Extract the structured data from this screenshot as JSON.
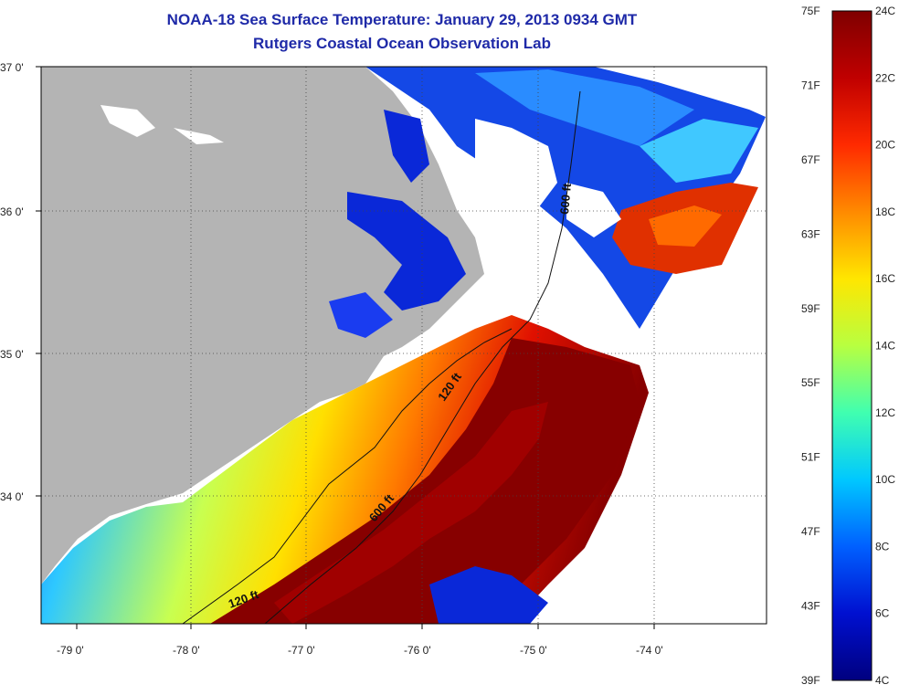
{
  "header": {
    "title": "NOAA-18 Sea Surface Temperature:  January 29, 2013 0934 GMT",
    "subtitle": "Rutgers Coastal Ocean Observation Lab"
  },
  "axes": {
    "lat_labels": [
      "37 0'",
      "36 0'",
      "35 0'",
      "34 0'"
    ],
    "lon_labels": [
      "-79 0'",
      "-78 0'",
      "-77 0'",
      "-76 0'",
      "-75 0'",
      "-74 0'"
    ]
  },
  "contours": {
    "shelf_label_1": "120 ft",
    "shelf_label_2": "120 ft",
    "slope_label_1": "600 ft",
    "slope_label_2": "600 ft"
  },
  "colorbar": {
    "f_labels": [
      "75F",
      "71F",
      "67F",
      "63F",
      "59F",
      "55F",
      "51F",
      "47F",
      "43F",
      "39F"
    ],
    "c_labels": [
      "24C",
      "22C",
      "20C",
      "18C",
      "16C",
      "14C",
      "12C",
      "10C",
      "8C",
      "6C",
      "4C"
    ],
    "colors": [
      "#7f0000",
      "#c00000",
      "#ff2a00",
      "#ff8a00",
      "#ffe600",
      "#b8ff40",
      "#40ffb0",
      "#00c8ff",
      "#0060ff",
      "#0010d0",
      "#00007f"
    ]
  },
  "colors": {
    "land": "#b4b4b4",
    "cloud": "#ffffff",
    "warm_core": "#870000",
    "cold_shelf": "#0a28d8"
  }
}
